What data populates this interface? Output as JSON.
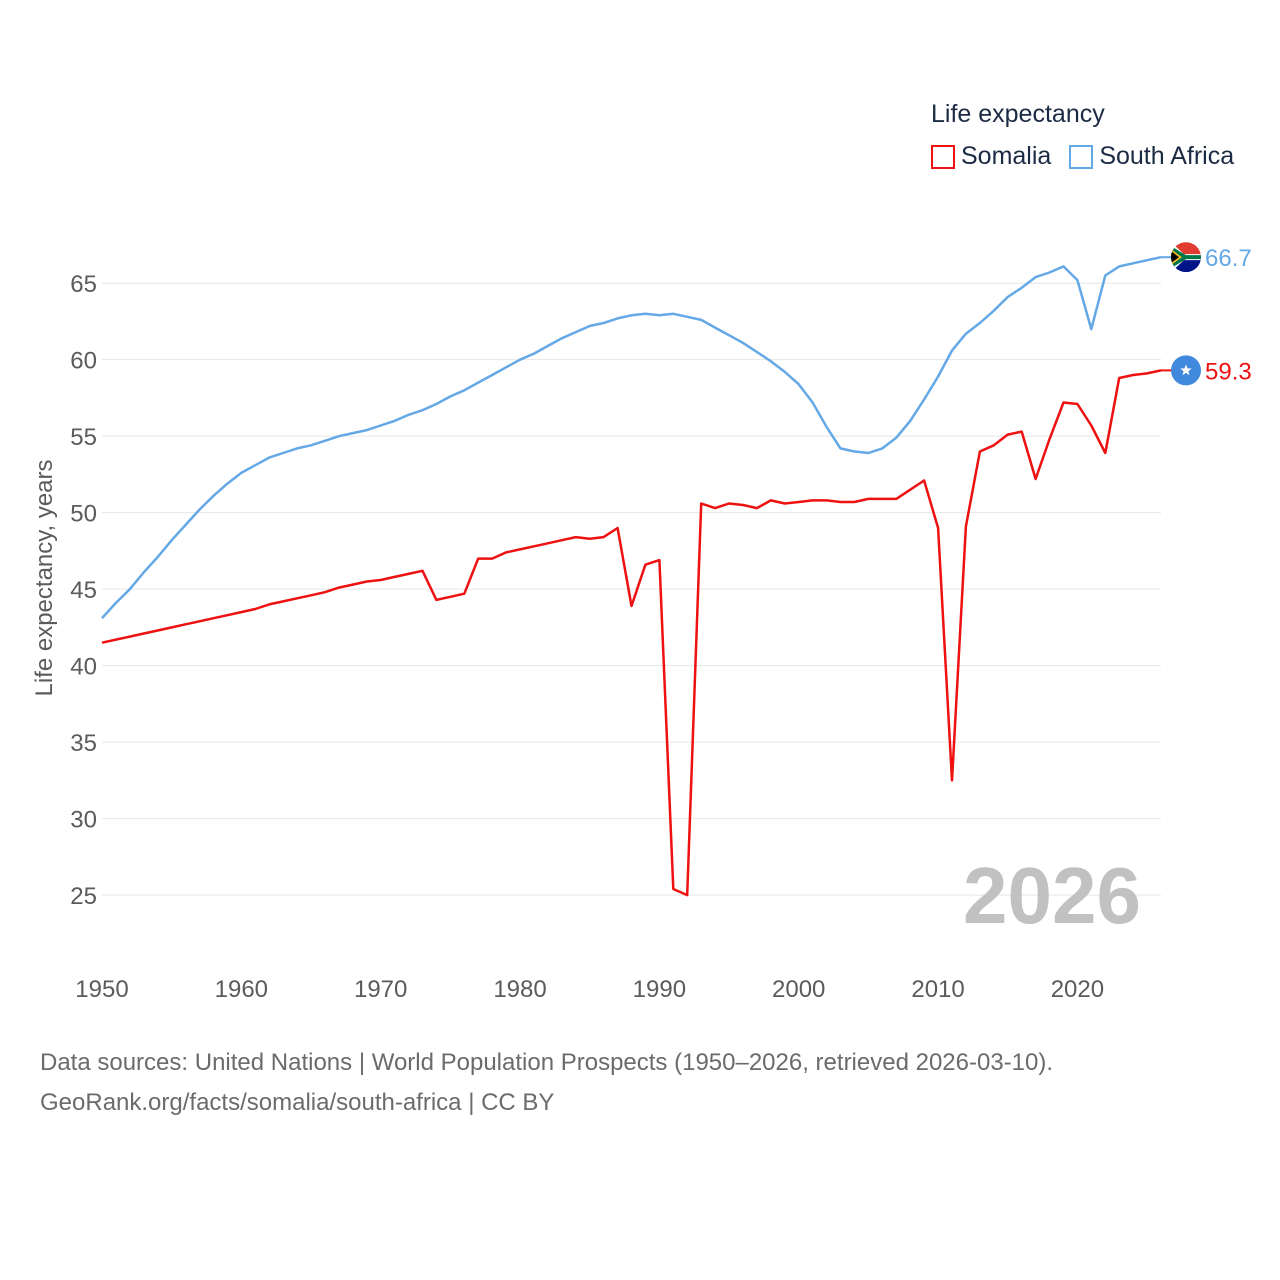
{
  "legend": {
    "title": "Life expectancy",
    "items": [
      {
        "label": "Somalia",
        "color": "#ee1111"
      },
      {
        "label": "South Africa",
        "color": "#64a8e6"
      }
    ]
  },
  "watermark_year": "2026",
  "sources": {
    "line1": "Data sources: United Nations | World Population Prospects (1950–2026, retrieved 2026-03-10).",
    "line2": "GeoRank.org/facts/somalia/south-africa | CC BY"
  },
  "chart_data": {
    "type": "line",
    "title": "Life expectancy",
    "xlabel": "",
    "ylabel": "Life expectancy, years",
    "xlim": [
      1950,
      2026
    ],
    "ylim": [
      22,
      69
    ],
    "xticks": [
      1950,
      1960,
      1970,
      1980,
      1990,
      2000,
      2010,
      2020
    ],
    "yticks": [
      25,
      30,
      35,
      40,
      45,
      50,
      55,
      60,
      65
    ],
    "grid": true,
    "legend_position": "top-right",
    "series": [
      {
        "name": "Somalia",
        "color": "#ee1111",
        "end_label": "59.3",
        "flag_icon": "somalia-flag-icon",
        "x": [
          1950,
          1951,
          1952,
          1953,
          1954,
          1955,
          1956,
          1957,
          1958,
          1959,
          1960,
          1961,
          1962,
          1963,
          1964,
          1965,
          1966,
          1967,
          1968,
          1969,
          1970,
          1971,
          1972,
          1973,
          1974,
          1975,
          1976,
          1977,
          1978,
          1979,
          1980,
          1981,
          1982,
          1983,
          1984,
          1985,
          1986,
          1987,
          1988,
          1989,
          1990,
          1991,
          1992,
          1993,
          1994,
          1995,
          1996,
          1997,
          1998,
          1999,
          2000,
          2001,
          2002,
          2003,
          2004,
          2005,
          2006,
          2007,
          2008,
          2009,
          2010,
          2011,
          2012,
          2013,
          2014,
          2015,
          2016,
          2017,
          2018,
          2019,
          2020,
          2021,
          2022,
          2023,
          2024,
          2025,
          2026
        ],
        "values": [
          41.5,
          41.7,
          41.9,
          42.1,
          42.3,
          42.5,
          42.7,
          42.9,
          43.1,
          43.3,
          43.5,
          43.7,
          44.0,
          44.2,
          44.4,
          44.6,
          44.8,
          45.1,
          45.3,
          45.5,
          45.6,
          45.8,
          46.0,
          46.2,
          44.3,
          44.5,
          44.7,
          47.0,
          47.0,
          47.4,
          47.6,
          47.8,
          48.0,
          48.2,
          48.4,
          48.3,
          48.4,
          49.0,
          43.9,
          46.6,
          46.9,
          25.4,
          25.0,
          50.6,
          50.3,
          50.6,
          50.5,
          50.3,
          50.8,
          50.6,
          50.7,
          50.8,
          50.8,
          50.7,
          50.7,
          50.9,
          50.9,
          50.9,
          51.5,
          52.1,
          49.0,
          32.5,
          49.1,
          54.0,
          54.4,
          55.1,
          55.3,
          52.2,
          54.8,
          57.2,
          57.1,
          55.7,
          53.9,
          58.8,
          59.0,
          59.1,
          59.3
        ]
      },
      {
        "name": "South Africa",
        "color": "#64a8e6",
        "end_label": "66.7",
        "flag_icon": "south-africa-flag-icon",
        "x": [
          1950,
          1951,
          1952,
          1953,
          1954,
          1955,
          1956,
          1957,
          1958,
          1959,
          1960,
          1961,
          1962,
          1963,
          1964,
          1965,
          1966,
          1967,
          1968,
          1969,
          1970,
          1971,
          1972,
          1973,
          1974,
          1975,
          1976,
          1977,
          1978,
          1979,
          1980,
          1981,
          1982,
          1983,
          1984,
          1985,
          1986,
          1987,
          1988,
          1989,
          1990,
          1991,
          1992,
          1993,
          1994,
          1995,
          1996,
          1997,
          1998,
          1999,
          2000,
          2001,
          2002,
          2003,
          2004,
          2005,
          2006,
          2007,
          2008,
          2009,
          2010,
          2011,
          2012,
          2013,
          2014,
          2015,
          2016,
          2017,
          2018,
          2019,
          2020,
          2021,
          2022,
          2023,
          2024,
          2025,
          2026
        ],
        "values": [
          43.1,
          44.1,
          45.0,
          46.1,
          47.1,
          48.2,
          49.2,
          50.2,
          51.1,
          51.9,
          52.6,
          53.1,
          53.6,
          53.9,
          54.2,
          54.4,
          54.7,
          55.0,
          55.2,
          55.4,
          55.7,
          56.0,
          56.4,
          56.7,
          57.1,
          57.6,
          58.0,
          58.5,
          59.0,
          59.5,
          60.0,
          60.4,
          60.9,
          61.4,
          61.8,
          62.2,
          62.4,
          62.7,
          62.9,
          63.0,
          62.9,
          63.0,
          62.8,
          62.6,
          62.1,
          61.6,
          61.1,
          60.5,
          59.9,
          59.2,
          58.4,
          57.2,
          55.6,
          54.2,
          54.0,
          53.9,
          54.2,
          54.9,
          56.0,
          57.4,
          58.9,
          60.6,
          61.7,
          62.4,
          63.2,
          64.1,
          64.7,
          65.4,
          65.7,
          66.1,
          65.2,
          62.0,
          65.5,
          66.1,
          66.3,
          66.5,
          66.7
        ]
      }
    ]
  }
}
